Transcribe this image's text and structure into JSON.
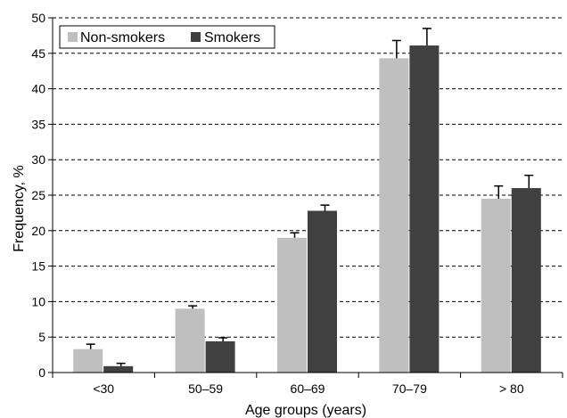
{
  "chart_data": {
    "type": "bar",
    "title": "",
    "xlabel": "Age groups (years)",
    "ylabel": "Frequency, %",
    "ylim": [
      0,
      50
    ],
    "yticks": [
      0,
      5,
      10,
      15,
      20,
      25,
      30,
      35,
      40,
      45,
      50
    ],
    "grid": "horizontal dashed",
    "legend_position": "top-left",
    "categories": [
      "<30",
      "50–59",
      "60–69",
      "70–79",
      "> 80"
    ],
    "series": [
      {
        "name": "Non-smokers",
        "color": "#bfbfbf",
        "values": [
          3.3,
          9.0,
          19.0,
          44.3,
          24.5
        ],
        "error": [
          0.7,
          0.4,
          0.7,
          2.5,
          1.8
        ]
      },
      {
        "name": "Smokers",
        "color": "#404040",
        "values": [
          0.9,
          4.4,
          22.8,
          46.1,
          26.0
        ],
        "error": [
          0.4,
          0.5,
          0.8,
          2.4,
          1.8
        ]
      }
    ]
  }
}
